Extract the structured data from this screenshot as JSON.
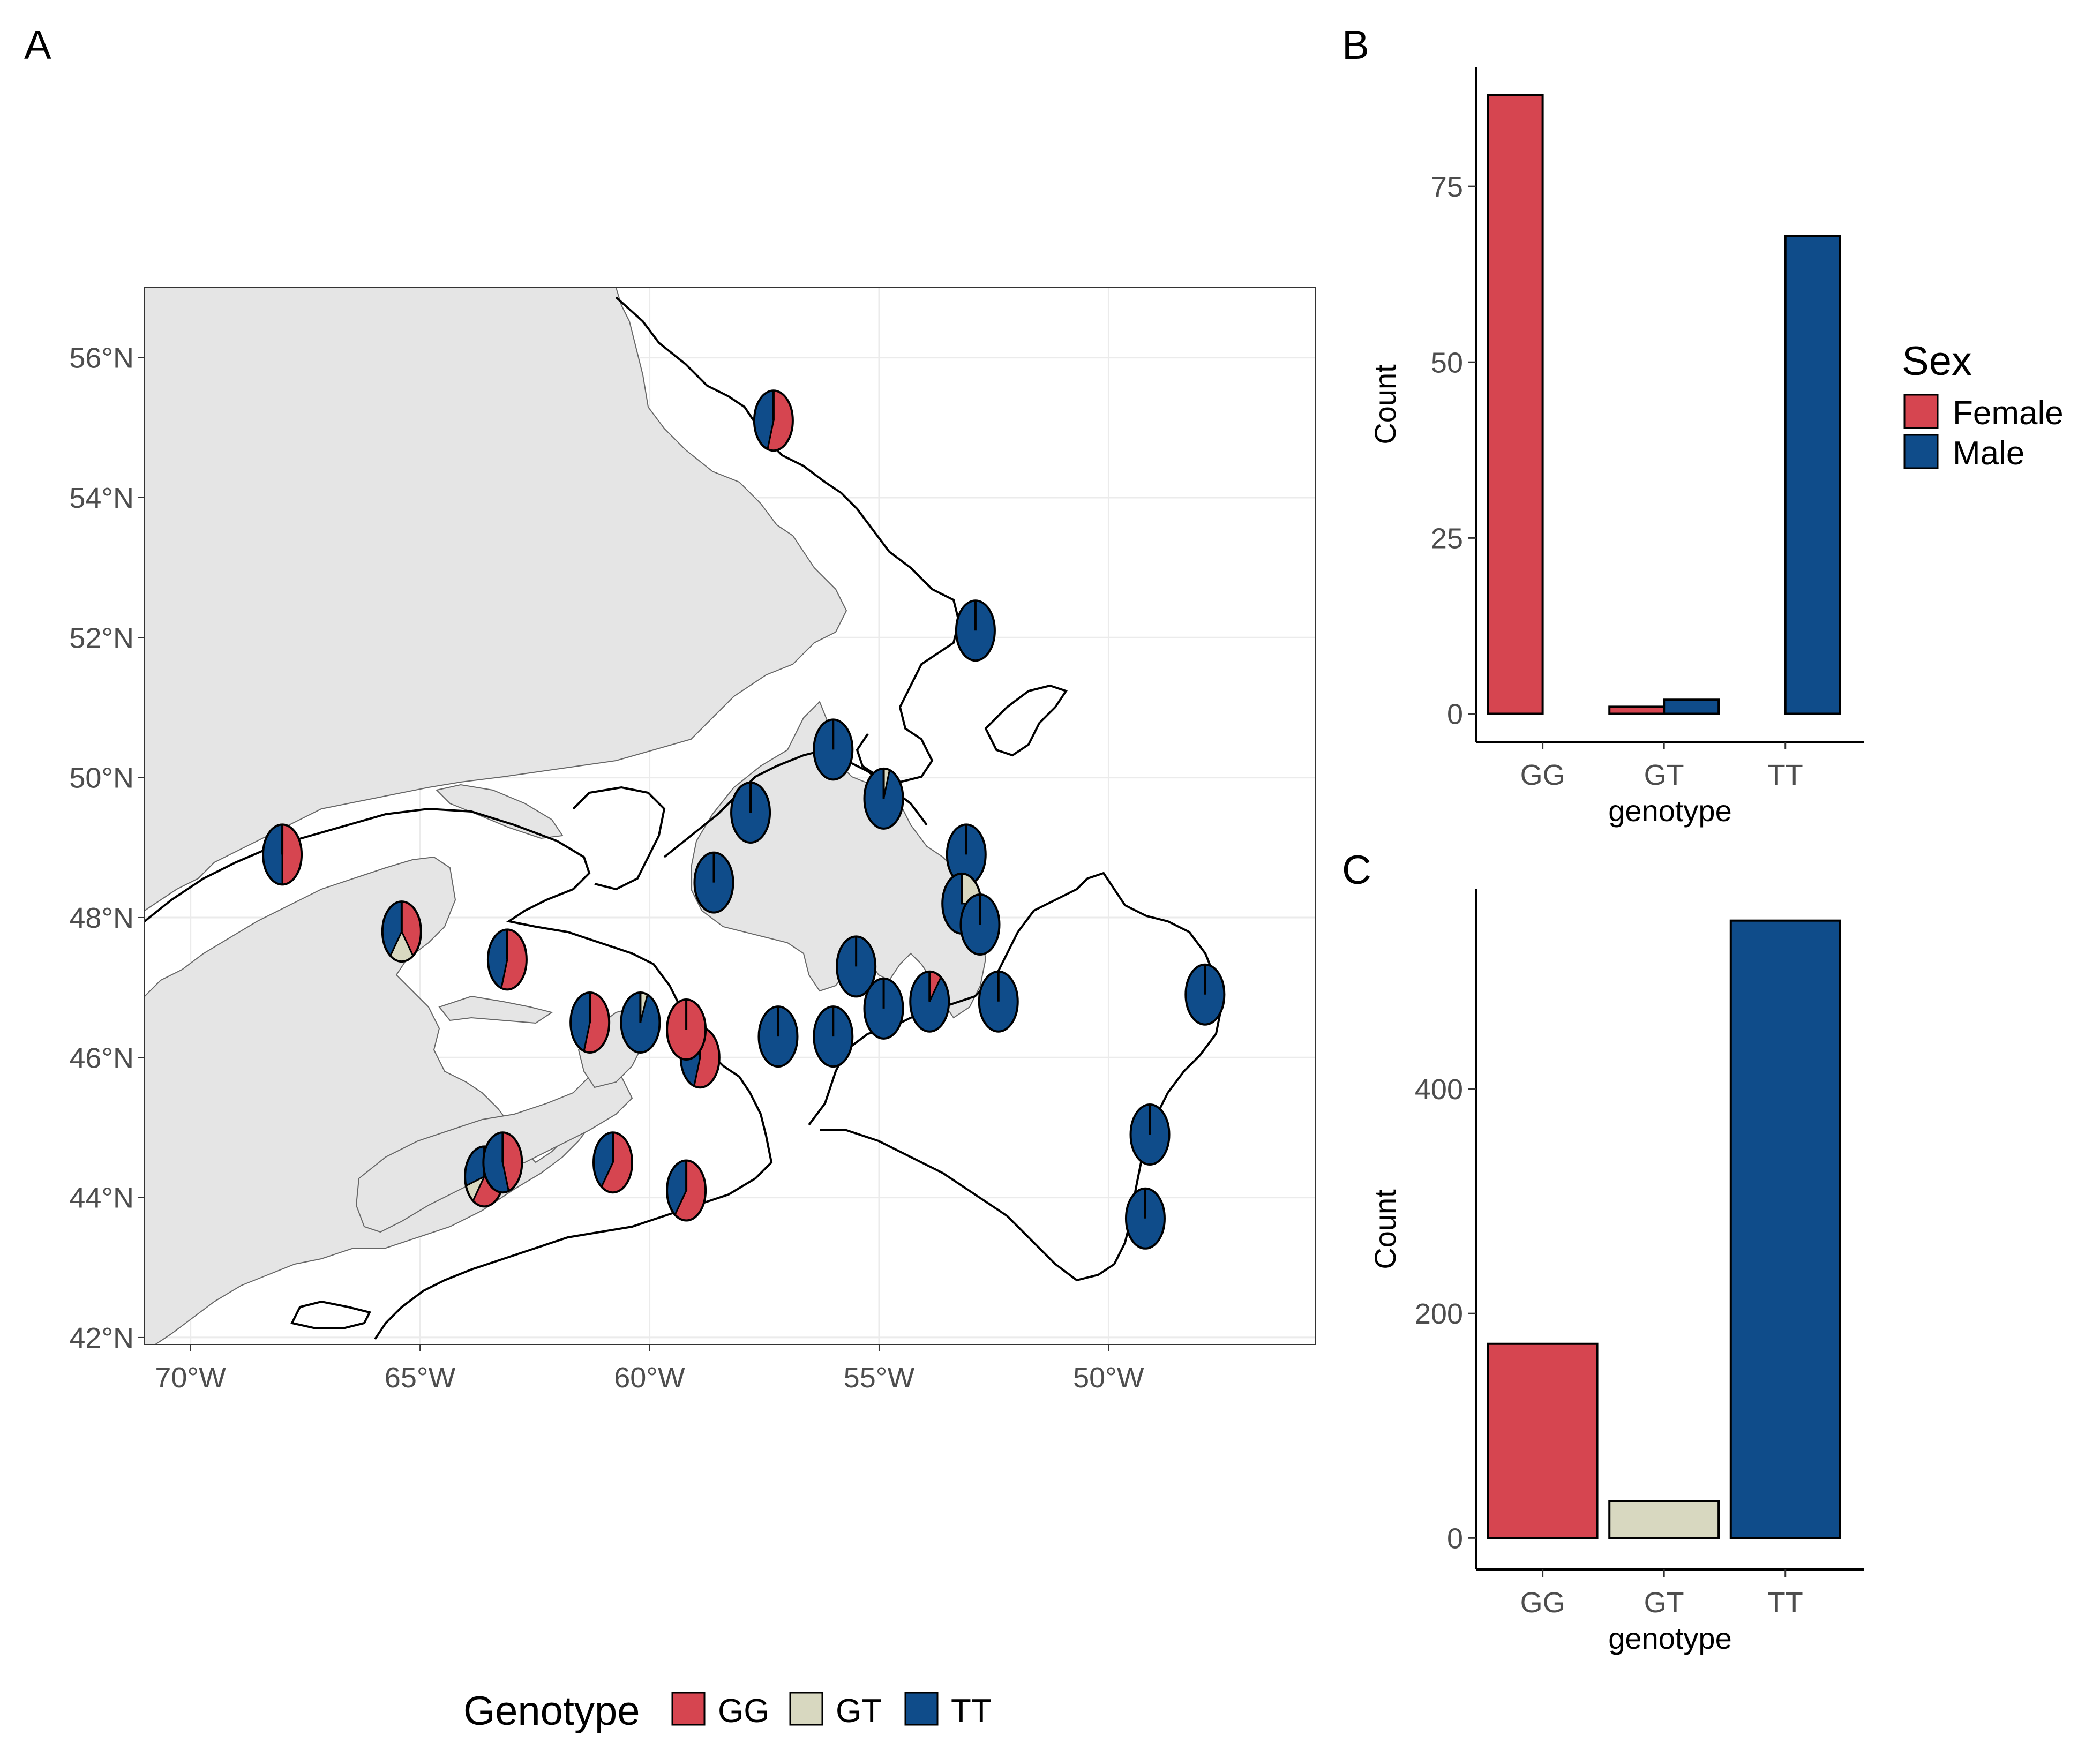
{
  "colors": {
    "GG": "#d64550",
    "GT": "#d8d8c0",
    "TT": "#0f4c8a",
    "land": "#e5e5e5",
    "grid": "#ebebeb"
  },
  "panels": {
    "a": "A",
    "b": "B",
    "c": "C"
  },
  "map": {
    "lon_ticks": [
      "70°W",
      "65°W",
      "60°W",
      "55°W",
      "50°W"
    ],
    "lat_ticks": [
      "56°N",
      "54°N",
      "52°N",
      "50°N",
      "48°N",
      "46°N",
      "44°N",
      "42°N"
    ],
    "legend_title": "Genotype",
    "legend_items": [
      "GG",
      "GT",
      "TT"
    ]
  },
  "chart_data": [
    {
      "type": "scatter",
      "panel": "A",
      "subtype": "pie-map",
      "xlim": [
        -71,
        -45.5
      ],
      "ylim": [
        41.9,
        57
      ],
      "x_unit": "longitude",
      "y_unit": "latitude",
      "sites": [
        {
          "lon": -57.3,
          "lat": 55.1,
          "GG": 0.55,
          "GT": 0.0,
          "TT": 0.45
        },
        {
          "lon": -68.0,
          "lat": 48.9,
          "GG": 0.5,
          "GT": 0.0,
          "TT": 0.5
        },
        {
          "lon": -65.4,
          "lat": 47.8,
          "GG": 0.4,
          "GT": 0.2,
          "TT": 0.4
        },
        {
          "lon": -63.1,
          "lat": 47.4,
          "GG": 0.55,
          "GT": 0.0,
          "TT": 0.45
        },
        {
          "lon": -61.3,
          "lat": 46.5,
          "GG": 0.55,
          "GT": 0.0,
          "TT": 0.45
        },
        {
          "lon": -60.2,
          "lat": 46.5,
          "GG": 0.0,
          "GT": 0.06,
          "TT": 0.94
        },
        {
          "lon": -58.9,
          "lat": 46.0,
          "GG": 0.55,
          "GT": 0.0,
          "TT": 0.45
        },
        {
          "lon": -59.2,
          "lat": 46.4,
          "GG": 1.0,
          "GT": 0.0,
          "TT": 0.0
        },
        {
          "lon": -63.6,
          "lat": 44.3,
          "GG": 0.6,
          "GT": 0.1,
          "TT": 0.3
        },
        {
          "lon": -63.2,
          "lat": 44.5,
          "GG": 0.45,
          "GT": 0.0,
          "TT": 0.55
        },
        {
          "lon": -60.8,
          "lat": 44.5,
          "GG": 0.6,
          "GT": 0.0,
          "TT": 0.4
        },
        {
          "lon": -59.2,
          "lat": 44.1,
          "GG": 0.6,
          "GT": 0.0,
          "TT": 0.4
        },
        {
          "lon": -57.8,
          "lat": 49.5,
          "GG": 0.0,
          "GT": 0.0,
          "TT": 1.0
        },
        {
          "lon": -58.6,
          "lat": 48.5,
          "GG": 0.0,
          "GT": 0.0,
          "TT": 1.0
        },
        {
          "lon": -56.0,
          "lat": 50.4,
          "GG": 0.0,
          "GT": 0.0,
          "TT": 1.0
        },
        {
          "lon": -54.9,
          "lat": 49.7,
          "GG": 0.0,
          "GT": 0.05,
          "TT": 0.95
        },
        {
          "lon": -52.9,
          "lat": 52.1,
          "GG": 0.0,
          "GT": 0.0,
          "TT": 1.0
        },
        {
          "lon": -53.1,
          "lat": 48.9,
          "GG": 0.0,
          "GT": 0.0,
          "TT": 1.0
        },
        {
          "lon": -53.2,
          "lat": 48.2,
          "GG": 0.0,
          "GT": 0.25,
          "TT": 0.75
        },
        {
          "lon": -52.8,
          "lat": 47.9,
          "GG": 0.0,
          "GT": 0.0,
          "TT": 1.0
        },
        {
          "lon": -55.5,
          "lat": 47.3,
          "GG": 0.0,
          "GT": 0.0,
          "TT": 1.0
        },
        {
          "lon": -54.9,
          "lat": 46.7,
          "GG": 0.0,
          "GT": 0.0,
          "TT": 1.0
        },
        {
          "lon": -53.9,
          "lat": 46.8,
          "GG": 0.1,
          "GT": 0.0,
          "TT": 0.9
        },
        {
          "lon": -52.4,
          "lat": 46.8,
          "GG": 0.0,
          "GT": 0.0,
          "TT": 1.0
        },
        {
          "lon": -57.2,
          "lat": 46.3,
          "GG": 0.0,
          "GT": 0.0,
          "TT": 1.0
        },
        {
          "lon": -56.0,
          "lat": 46.3,
          "GG": 0.0,
          "GT": 0.0,
          "TT": 1.0
        },
        {
          "lon": -47.9,
          "lat": 46.9,
          "GG": 0.0,
          "GT": 0.0,
          "TT": 1.0
        },
        {
          "lon": -49.1,
          "lat": 44.9,
          "GG": 0.0,
          "GT": 0.0,
          "TT": 1.0
        },
        {
          "lon": -49.2,
          "lat": 43.7,
          "GG": 0.0,
          "GT": 0.0,
          "TT": 1.0
        }
      ]
    },
    {
      "type": "bar",
      "panel": "B",
      "categories": [
        "GG",
        "GT",
        "TT"
      ],
      "series": [
        {
          "name": "Female",
          "values": [
            88,
            1,
            0
          ]
        },
        {
          "name": "Male",
          "values": [
            0,
            2,
            68
          ]
        }
      ],
      "xlabel": "genotype",
      "ylabel": "Count",
      "ylim": [
        -4,
        92
      ],
      "yticks": [
        0,
        25,
        50,
        75
      ],
      "legend_title": "Sex",
      "legend_position": "right"
    },
    {
      "type": "bar",
      "panel": "C",
      "categories": [
        "GG",
        "GT",
        "TT"
      ],
      "values": [
        173,
        33,
        550
      ],
      "xlabel": "genotype",
      "ylabel": "Count",
      "ylim": [
        -28,
        578
      ],
      "yticks": [
        0,
        200,
        400
      ]
    }
  ]
}
